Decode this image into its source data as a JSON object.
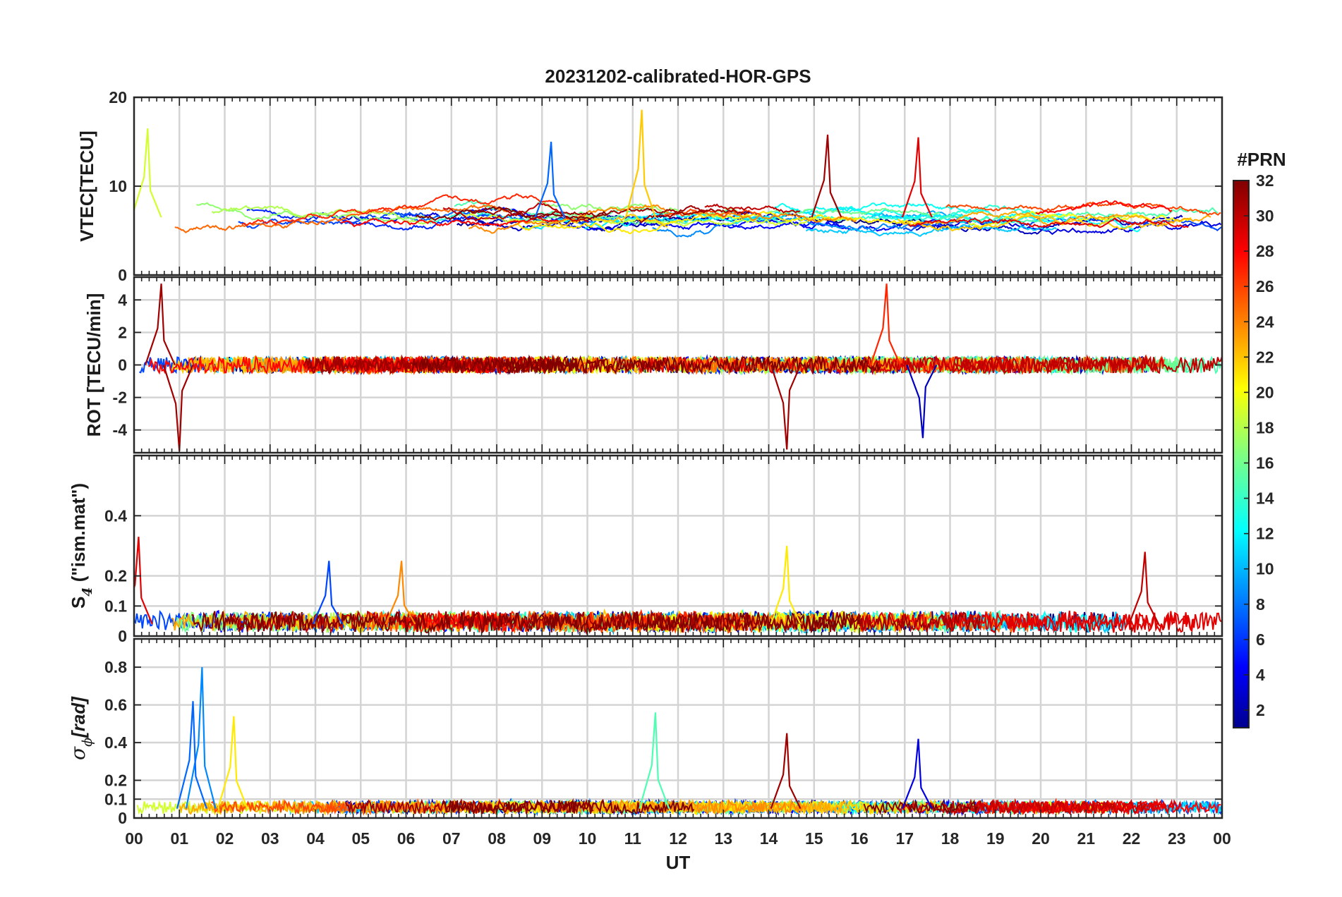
{
  "chart_data": {
    "type": "line",
    "title": "20231202-calibrated-HOR-GPS",
    "xlabel": "UT",
    "x_range_hours": [
      0,
      24
    ],
    "x_tick_labels": [
      "00",
      "01",
      "02",
      "03",
      "04",
      "05",
      "06",
      "07",
      "08",
      "09",
      "10",
      "11",
      "12",
      "13",
      "14",
      "15",
      "16",
      "17",
      "18",
      "19",
      "20",
      "21",
      "22",
      "23",
      "00"
    ],
    "grid": true,
    "colorbar": {
      "label": "#PRN",
      "colormap": "jet",
      "range": [
        1,
        32
      ],
      "tick_labels": [
        "2",
        "4",
        "6",
        "8",
        "10",
        "12",
        "14",
        "16",
        "18",
        "20",
        "22",
        "24",
        "26",
        "28",
        "30",
        "32"
      ]
    },
    "panels": [
      {
        "ylabel": "VTEC[TECU]",
        "ylim": [
          0,
          20
        ],
        "y_ticks": [
          0,
          10,
          20
        ],
        "y_tick_labels": [
          "0",
          "10",
          "20"
        ],
        "baseline": 6.5,
        "spread": 1.6,
        "notable_peaks": [
          {
            "prn": 19,
            "hour": 0.3,
            "value": 16.5
          },
          {
            "prn": 22,
            "hour": 11.2,
            "value": 18.6
          },
          {
            "prn": 31,
            "hour": 15.3,
            "value": 15.8
          },
          {
            "prn": 29,
            "hour": 17.3,
            "value": 15.5
          },
          {
            "prn": 8,
            "hour": 9.2,
            "value": 15.0
          }
        ]
      },
      {
        "ylabel_main": "ROT [TECU/min]",
        "ylim": [
          -5.4,
          5.4
        ],
        "y_ticks": [
          -4,
          -2,
          0,
          2,
          4
        ],
        "y_tick_labels": [
          "-4",
          "-2",
          "0",
          "2",
          "4"
        ],
        "baseline": 0,
        "spread": 0.5,
        "notable_peaks": [
          {
            "prn": 31,
            "hour": 0.6,
            "value": 5.0
          },
          {
            "prn": 31,
            "hour": 1.0,
            "value": -5.3
          },
          {
            "prn": 31,
            "hour": 14.4,
            "value": -5.2
          },
          {
            "prn": 27,
            "hour": 16.6,
            "value": 5.0
          },
          {
            "prn": 3,
            "hour": 17.4,
            "value": -4.5
          }
        ]
      },
      {
        "ylabel_main": "S",
        "ylabel_sub": "4",
        "ylabel_rest": " (\"ism.mat\")",
        "ylim": [
          0,
          0.6
        ],
        "y_ticks": [
          0,
          0.1,
          0.2,
          0.4
        ],
        "y_tick_labels": [
          "0",
          "0.1",
          "0.2",
          "0.4"
        ],
        "baseline": 0.04,
        "spread": 0.03,
        "notable_peaks": [
          {
            "prn": 29,
            "hour": 0.1,
            "value": 0.33
          },
          {
            "prn": 21,
            "hour": 14.4,
            "value": 0.3
          },
          {
            "prn": 30,
            "hour": 22.3,
            "value": 0.28
          },
          {
            "prn": 24,
            "hour": 5.9,
            "value": 0.25
          },
          {
            "prn": 7,
            "hour": 4.3,
            "value": 0.25
          }
        ]
      },
      {
        "ylabel_main": "σ",
        "ylabel_sub": "ϕ",
        "ylabel_rest": "[rad]",
        "ylim": [
          0,
          0.95
        ],
        "y_ticks": [
          0,
          0.1,
          0.2,
          0.4,
          0.6,
          0.8
        ],
        "y_tick_labels": [
          "0",
          "0.1",
          "0.2",
          "0.4",
          "0.6",
          "0.8"
        ],
        "baseline": 0.05,
        "spread": 0.03,
        "notable_peaks": [
          {
            "prn": 9,
            "hour": 1.5,
            "value": 0.8
          },
          {
            "prn": 8,
            "hour": 1.3,
            "value": 0.62
          },
          {
            "prn": 21,
            "hour": 2.2,
            "value": 0.54
          },
          {
            "prn": 15,
            "hour": 11.5,
            "value": 0.56
          },
          {
            "prn": 31,
            "hour": 14.4,
            "value": 0.45
          },
          {
            "prn": 4,
            "hour": 17.3,
            "value": 0.42
          }
        ]
      }
    ]
  }
}
